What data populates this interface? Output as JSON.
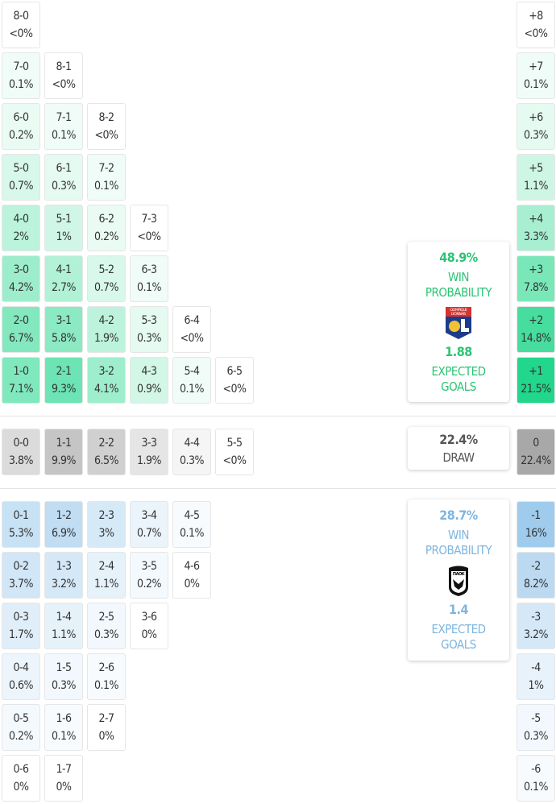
{
  "colors": {
    "home": "#1fd68a",
    "draw": "#a8a8a8",
    "away": "#8fc3ea",
    "home_text": "#2bc474",
    "away_text": "#7db5e0"
  },
  "home_scores": [
    [
      [
        "8-0",
        "<0%"
      ]
    ],
    [
      [
        "7-0",
        "0.1%"
      ],
      [
        "8-1",
        "<0%"
      ]
    ],
    [
      [
        "6-0",
        "0.2%"
      ],
      [
        "7-1",
        "0.1%"
      ],
      [
        "8-2",
        "<0%"
      ]
    ],
    [
      [
        "5-0",
        "0.7%"
      ],
      [
        "6-1",
        "0.3%"
      ],
      [
        "7-2",
        "0.1%"
      ]
    ],
    [
      [
        "4-0",
        "2%"
      ],
      [
        "5-1",
        "1%"
      ],
      [
        "6-2",
        "0.2%"
      ],
      [
        "7-3",
        "<0%"
      ]
    ],
    [
      [
        "3-0",
        "4.2%"
      ],
      [
        "4-1",
        "2.7%"
      ],
      [
        "5-2",
        "0.7%"
      ],
      [
        "6-3",
        "0.1%"
      ]
    ],
    [
      [
        "2-0",
        "6.7%"
      ],
      [
        "3-1",
        "5.8%"
      ],
      [
        "4-2",
        "1.9%"
      ],
      [
        "5-3",
        "0.3%"
      ],
      [
        "6-4",
        "<0%"
      ]
    ],
    [
      [
        "1-0",
        "7.1%"
      ],
      [
        "2-1",
        "9.3%"
      ],
      [
        "3-2",
        "4.1%"
      ],
      [
        "4-3",
        "0.9%"
      ],
      [
        "5-4",
        "0.1%"
      ],
      [
        "6-5",
        "<0%"
      ]
    ]
  ],
  "draw_scores": [
    [
      "0-0",
      "3.8%"
    ],
    [
      "1-1",
      "9.9%"
    ],
    [
      "2-2",
      "6.5%"
    ],
    [
      "3-3",
      "1.9%"
    ],
    [
      "4-4",
      "0.3%"
    ],
    [
      "5-5",
      "<0%"
    ]
  ],
  "away_scores": [
    [
      [
        "0-1",
        "5.3%"
      ],
      [
        "1-2",
        "6.9%"
      ],
      [
        "2-3",
        "3%"
      ],
      [
        "3-4",
        "0.7%"
      ],
      [
        "4-5",
        "0.1%"
      ]
    ],
    [
      [
        "0-2",
        "3.7%"
      ],
      [
        "1-3",
        "3.2%"
      ],
      [
        "2-4",
        "1.1%"
      ],
      [
        "3-5",
        "0.2%"
      ],
      [
        "4-6",
        "0%"
      ]
    ],
    [
      [
        "0-3",
        "1.7%"
      ],
      [
        "1-4",
        "1.1%"
      ],
      [
        "2-5",
        "0.3%"
      ],
      [
        "3-6",
        "0%"
      ]
    ],
    [
      [
        "0-4",
        "0.6%"
      ],
      [
        "1-5",
        "0.3%"
      ],
      [
        "2-6",
        "0.1%"
      ]
    ],
    [
      [
        "0-5",
        "0.2%"
      ],
      [
        "1-6",
        "0.1%"
      ],
      [
        "2-7",
        "0%"
      ]
    ],
    [
      [
        "0-6",
        "0%"
      ],
      [
        "1-7",
        "0%"
      ]
    ]
  ],
  "home_margins": [
    [
      "+8",
      "<0%"
    ],
    [
      "+7",
      "0.1%"
    ],
    [
      "+6",
      "0.3%"
    ],
    [
      "+5",
      "1.1%"
    ],
    [
      "+4",
      "3.3%"
    ],
    [
      "+3",
      "7.8%"
    ],
    [
      "+2",
      "14.8%"
    ],
    [
      "+1",
      "21.5%"
    ]
  ],
  "draw_margin": [
    "0",
    "22.4%"
  ],
  "away_margins": [
    [
      "-1",
      "16%"
    ],
    [
      "-2",
      "8.2%"
    ],
    [
      "-3",
      "3.2%"
    ],
    [
      "-4",
      "1%"
    ],
    [
      "-5",
      "0.3%"
    ],
    [
      "-6",
      "0.1%"
    ]
  ],
  "home_summary": {
    "win_pct": "48.9%",
    "win_label_1": "WIN",
    "win_label_2": "PROBABILITY",
    "logo_icon": "olympique-lyonnais-crest",
    "xg": "1.88",
    "xg_label_1": "EXPECTED",
    "xg_label_2": "GOALS"
  },
  "draw_summary": {
    "pct": "22.4%",
    "label": "DRAW"
  },
  "away_summary": {
    "win_pct": "28.7%",
    "win_label_1": "WIN",
    "win_label_2": "PROBABILITY",
    "logo_icon": "paok-crest",
    "xg": "1.4",
    "xg_label_1": "EXPECTED",
    "xg_label_2": "GOALS"
  }
}
